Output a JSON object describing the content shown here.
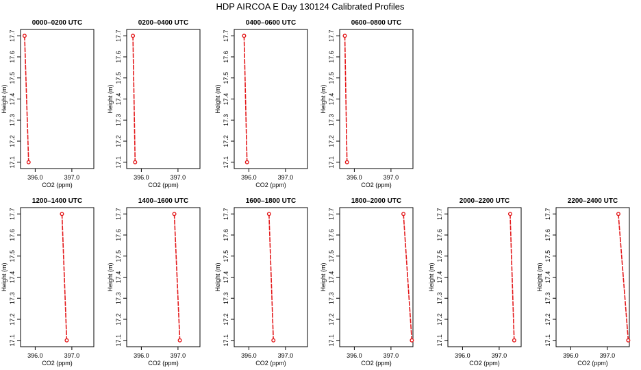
{
  "figure": {
    "title": "HDP AIRCOA E  Day 130124  Calibrated Profiles"
  },
  "style": {
    "line_color": "#e31a1c",
    "marker_color": "#e31a1c",
    "marker_shape": "open-circle",
    "axis_color": "#000000",
    "background": "#ffffff"
  },
  "chart_data": [
    {
      "type": "line",
      "title": "0000–0200 UTC",
      "xlabel": "CO2 (ppm)",
      "ylabel": "Height (m)",
      "xlim": [
        395.6,
        397.6
      ],
      "ylim": [
        17.07,
        17.73
      ],
      "xticks": [
        396.0,
        397.0
      ],
      "xtick_labels": [
        "396.0",
        "397.0"
      ],
      "yticks": [
        17.1,
        17.2,
        17.3,
        17.4,
        17.5,
        17.6,
        17.7
      ],
      "ytick_labels": [
        "17.1",
        "17.2",
        "17.3",
        "17.4",
        "17.5",
        "17.6",
        "17.7"
      ],
      "series": [
        {
          "x": [
            395.71,
            395.82
          ],
          "y": [
            17.7,
            17.1
          ]
        }
      ]
    },
    {
      "type": "line",
      "title": "0200–0400 UTC",
      "xlabel": "CO2 (ppm)",
      "ylabel": "Height (m)",
      "xlim": [
        395.6,
        397.6
      ],
      "ylim": [
        17.07,
        17.73
      ],
      "xticks": [
        396.0,
        397.0
      ],
      "xtick_labels": [
        "396.0",
        "397.0"
      ],
      "yticks": [
        17.1,
        17.2,
        17.3,
        17.4,
        17.5,
        17.6,
        17.7
      ],
      "ytick_labels": [
        "17.1",
        "17.2",
        "17.3",
        "17.4",
        "17.5",
        "17.6",
        "17.7"
      ],
      "series": [
        {
          "x": [
            395.77,
            395.83
          ],
          "y": [
            17.7,
            17.1
          ]
        }
      ]
    },
    {
      "type": "line",
      "title": "0400–0600 UTC",
      "xlabel": "CO2 (ppm)",
      "ylabel": "Height (m)",
      "xlim": [
        395.6,
        397.6
      ],
      "ylim": [
        17.07,
        17.73
      ],
      "xticks": [
        396.0,
        397.0
      ],
      "xtick_labels": [
        "396.0",
        "397.0"
      ],
      "yticks": [
        17.1,
        17.2,
        17.3,
        17.4,
        17.5,
        17.6,
        17.7
      ],
      "ytick_labels": [
        "17.1",
        "17.2",
        "17.3",
        "17.4",
        "17.5",
        "17.6",
        "17.7"
      ],
      "series": [
        {
          "x": [
            395.87,
            395.95
          ],
          "y": [
            17.7,
            17.1
          ]
        }
      ]
    },
    {
      "type": "line",
      "title": "0600–0800 UTC",
      "xlabel": "CO2 (ppm)",
      "ylabel": "Height (m)",
      "xlim": [
        395.6,
        397.6
      ],
      "ylim": [
        17.07,
        17.73
      ],
      "xticks": [
        396.0,
        397.0
      ],
      "xtick_labels": [
        "396.0",
        "397.0"
      ],
      "yticks": [
        17.1,
        17.2,
        17.3,
        17.4,
        17.5,
        17.6,
        17.7
      ],
      "ytick_labels": [
        "17.1",
        "17.2",
        "17.3",
        "17.4",
        "17.5",
        "17.6",
        "17.7"
      ],
      "series": [
        {
          "x": [
            395.74,
            395.8
          ],
          "y": [
            17.7,
            17.1
          ]
        }
      ]
    },
    {
      "type": "line",
      "title": "1200–1400 UTC",
      "xlabel": "CO2 (ppm)",
      "ylabel": "Height (m)",
      "xlim": [
        395.6,
        397.6
      ],
      "ylim": [
        17.07,
        17.73
      ],
      "xticks": [
        396.0,
        397.0
      ],
      "xtick_labels": [
        "396.0",
        "397.0"
      ],
      "yticks": [
        17.1,
        17.2,
        17.3,
        17.4,
        17.5,
        17.6,
        17.7
      ],
      "ytick_labels": [
        "17.1",
        "17.2",
        "17.3",
        "17.4",
        "17.5",
        "17.6",
        "17.7"
      ],
      "series": [
        {
          "x": [
            396.73,
            396.86
          ],
          "y": [
            17.7,
            17.1
          ]
        }
      ]
    },
    {
      "type": "line",
      "title": "1400–1600 UTC",
      "xlabel": "CO2 (ppm)",
      "ylabel": "Height (m)",
      "xlim": [
        395.6,
        397.6
      ],
      "ylim": [
        17.07,
        17.73
      ],
      "xticks": [
        396.0,
        397.0
      ],
      "xtick_labels": [
        "396.0",
        "397.0"
      ],
      "yticks": [
        17.1,
        17.2,
        17.3,
        17.4,
        17.5,
        17.6,
        17.7
      ],
      "ytick_labels": [
        "17.1",
        "17.2",
        "17.3",
        "17.4",
        "17.5",
        "17.6",
        "17.7"
      ],
      "series": [
        {
          "x": [
            396.9,
            397.05
          ],
          "y": [
            17.7,
            17.1
          ]
        }
      ]
    },
    {
      "type": "line",
      "title": "1600–1800 UTC",
      "xlabel": "CO2 (ppm)",
      "ylabel": "Height (m)",
      "xlim": [
        395.6,
        397.6
      ],
      "ylim": [
        17.07,
        17.73
      ],
      "xticks": [
        396.0,
        397.0
      ],
      "xtick_labels": [
        "396.0",
        "397.0"
      ],
      "yticks": [
        17.1,
        17.2,
        17.3,
        17.4,
        17.5,
        17.6,
        17.7
      ],
      "ytick_labels": [
        "17.1",
        "17.2",
        "17.3",
        "17.4",
        "17.5",
        "17.6",
        "17.7"
      ],
      "series": [
        {
          "x": [
            396.55,
            396.67
          ],
          "y": [
            17.7,
            17.1
          ]
        }
      ]
    },
    {
      "type": "line",
      "title": "1800–2000 UTC",
      "xlabel": "CO2 (ppm)",
      "ylabel": "Height (m)",
      "xlim": [
        395.6,
        397.6
      ],
      "ylim": [
        17.07,
        17.73
      ],
      "xticks": [
        396.0,
        397.0
      ],
      "xtick_labels": [
        "396.0",
        "397.0"
      ],
      "yticks": [
        17.1,
        17.2,
        17.3,
        17.4,
        17.5,
        17.6,
        17.7
      ],
      "ytick_labels": [
        "17.1",
        "17.2",
        "17.3",
        "17.4",
        "17.5",
        "17.6",
        "17.7"
      ],
      "series": [
        {
          "x": [
            397.34,
            397.57
          ],
          "y": [
            17.7,
            17.1
          ]
        }
      ]
    },
    {
      "type": "line",
      "title": "2000–2200 UTC",
      "xlabel": "CO2 (ppm)",
      "ylabel": "Height (m)",
      "xlim": [
        395.6,
        397.6
      ],
      "ylim": [
        17.07,
        17.73
      ],
      "xticks": [
        396.0,
        397.0
      ],
      "xtick_labels": [
        "396.0",
        "397.0"
      ],
      "yticks": [
        17.1,
        17.2,
        17.3,
        17.4,
        17.5,
        17.6,
        17.7
      ],
      "ytick_labels": [
        "17.1",
        "17.2",
        "17.3",
        "17.4",
        "17.5",
        "17.6",
        "17.7"
      ],
      "series": [
        {
          "x": [
            397.3,
            397.41
          ],
          "y": [
            17.7,
            17.1
          ]
        }
      ]
    },
    {
      "type": "line",
      "title": "2200–2400 UTC",
      "xlabel": "CO2 (ppm)",
      "ylabel": "Height (m)",
      "xlim": [
        395.6,
        397.6
      ],
      "ylim": [
        17.07,
        17.73
      ],
      "xticks": [
        396.0,
        397.0
      ],
      "xtick_labels": [
        "396.0",
        "397.0"
      ],
      "yticks": [
        17.1,
        17.2,
        17.3,
        17.4,
        17.5,
        17.6,
        17.7
      ],
      "ytick_labels": [
        "17.1",
        "17.2",
        "17.3",
        "17.4",
        "17.5",
        "17.6",
        "17.7"
      ],
      "series": [
        {
          "x": [
            397.3,
            397.57
          ],
          "y": [
            17.7,
            17.1
          ]
        }
      ]
    }
  ]
}
